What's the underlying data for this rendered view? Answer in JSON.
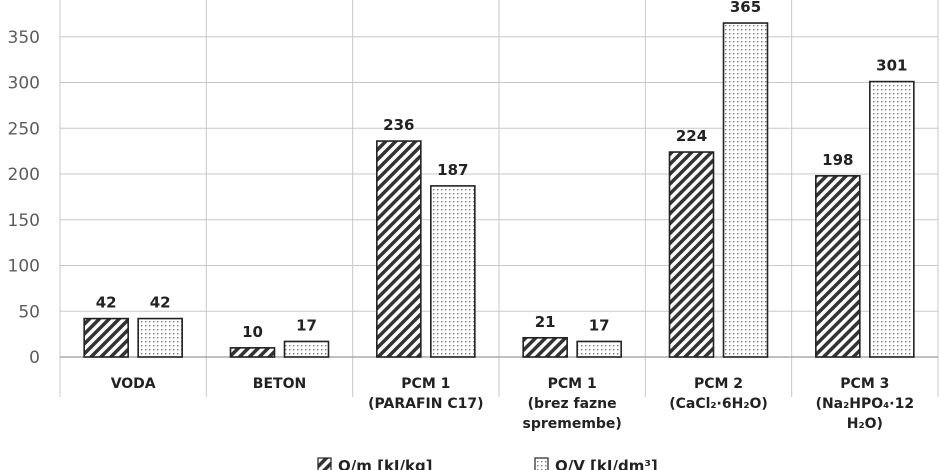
{
  "chart_data": {
    "type": "bar",
    "ylim": [
      0,
      350
    ],
    "yticks": [
      "0",
      "50",
      "100",
      "150",
      "200",
      "250",
      "300",
      "350"
    ],
    "grid": true,
    "legend_position": "bottom",
    "categories": [
      {
        "lines": [
          "VODA"
        ]
      },
      {
        "lines": [
          "BETON"
        ]
      },
      {
        "lines": [
          "PCM 1",
          "(PARAFIN C17)"
        ]
      },
      {
        "lines": [
          "PCM 1",
          "(brez fazne",
          "spremembe)"
        ]
      },
      {
        "lines": [
          "PCM 2",
          "(CaCl₂·6H₂O)"
        ]
      },
      {
        "lines": [
          "PCM 3",
          "(Na₂HPO₄·12",
          "H₂O)"
        ]
      }
    ],
    "series": [
      {
        "name": "Q/m [kJ/kg]",
        "pattern": "hatch",
        "values": [
          42,
          10,
          236,
          21,
          224,
          198
        ]
      },
      {
        "name": "Q/V [kJ/dm³]",
        "pattern": "dots",
        "values": [
          42,
          17,
          187,
          17,
          365,
          301
        ]
      }
    ],
    "colors": {
      "bar_stroke": "#222222",
      "grid": "#c8c8c8",
      "hatch": "#333333",
      "dots": "#8a8a8a"
    }
  }
}
